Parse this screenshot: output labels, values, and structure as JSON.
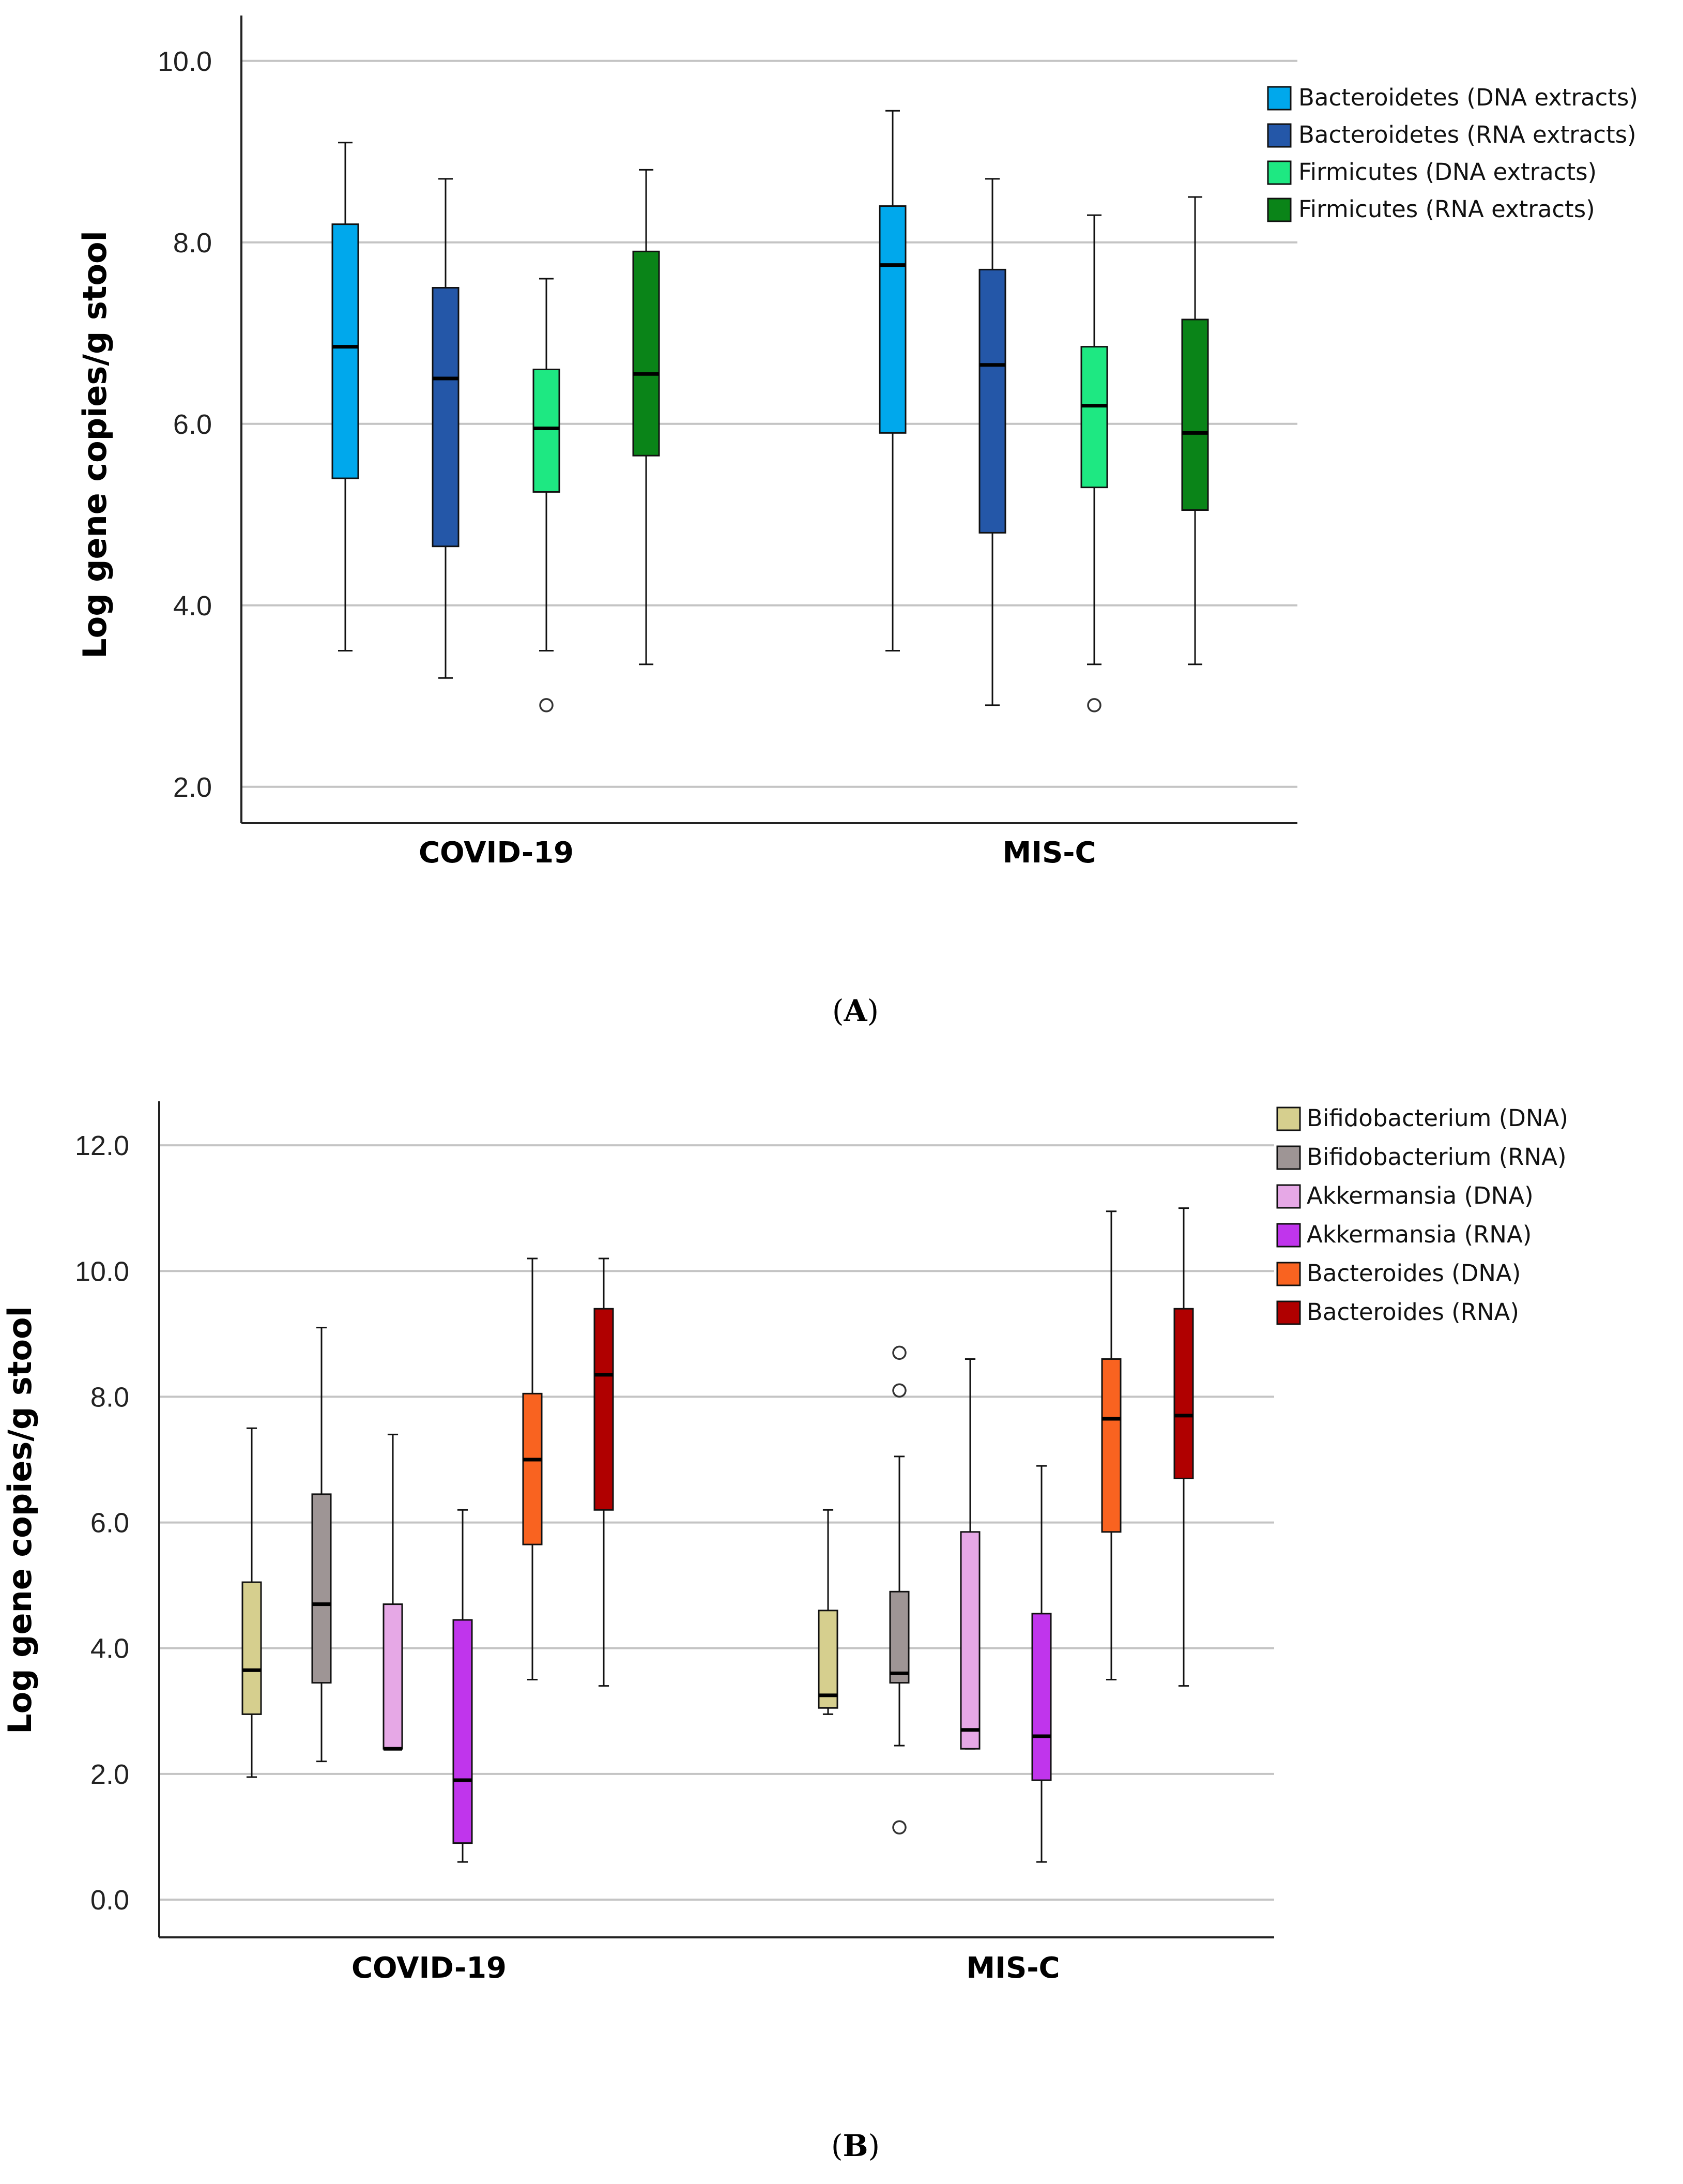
{
  "chart_data": [
    {
      "type": "box",
      "panel_label": "A",
      "title": "",
      "xlabel": "",
      "ylabel": "Log gene copies/g stool",
      "ylim": [
        1.6,
        10.5
      ],
      "yticks": [
        2.0,
        4.0,
        6.0,
        8.0,
        10.0
      ],
      "tick_labels": [
        "2.0",
        "4.0",
        "6.0",
        "8.0",
        "10.0"
      ],
      "grid": true,
      "legend_position": "top-right",
      "categories": [
        "COVID-19",
        "MIS-C"
      ],
      "series": [
        {
          "name": "Bacteroidetes (DNA extracts)",
          "color": "#00a8ec",
          "boxes": [
            {
              "min": 3.5,
              "q1": 5.4,
              "median": 6.85,
              "q3": 8.2,
              "max": 9.1,
              "outliers": []
            },
            {
              "min": 3.5,
              "q1": 5.9,
              "median": 7.75,
              "q3": 8.4,
              "max": 9.45,
              "outliers": []
            }
          ]
        },
        {
          "name": "Bacteroidetes (RNA extracts)",
          "color": "#2457a8",
          "boxes": [
            {
              "min": 3.2,
              "q1": 4.65,
              "median": 6.5,
              "q3": 7.5,
              "max": 8.7,
              "outliers": []
            },
            {
              "min": 2.9,
              "q1": 4.8,
              "median": 6.65,
              "q3": 7.7,
              "max": 8.7,
              "outliers": []
            }
          ]
        },
        {
          "name": "Firmicutes (DNA extracts)",
          "color": "#1ee882",
          "boxes": [
            {
              "min": 3.5,
              "q1": 5.25,
              "median": 5.95,
              "q3": 6.6,
              "max": 7.6,
              "outliers": [
                2.9
              ]
            },
            {
              "min": 3.35,
              "q1": 5.3,
              "median": 6.2,
              "q3": 6.85,
              "max": 8.3,
              "outliers": [
                2.9
              ]
            }
          ]
        },
        {
          "name": "Firmicutes (RNA extracts)",
          "color": "#0a8418",
          "boxes": [
            {
              "min": 3.35,
              "q1": 5.65,
              "median": 6.55,
              "q3": 7.9,
              "max": 8.8,
              "outliers": []
            },
            {
              "min": 3.35,
              "q1": 5.05,
              "median": 5.9,
              "q3": 7.15,
              "max": 8.5,
              "outliers": []
            }
          ]
        }
      ]
    },
    {
      "type": "box",
      "panel_label": "B",
      "title": "",
      "xlabel": "",
      "ylabel": "Log gene copies/g stool",
      "ylim": [
        -0.6,
        12.7
      ],
      "yticks": [
        0.0,
        2.0,
        4.0,
        6.0,
        8.0,
        10.0,
        12.0
      ],
      "tick_labels": [
        "0.0",
        "2.0",
        "4.0",
        "6.0",
        "8.0",
        "10.0",
        "12.0"
      ],
      "grid": true,
      "legend_position": "top-right",
      "categories": [
        "COVID-19",
        "MIS-C"
      ],
      "series": [
        {
          "name": "Bifidobacterium (DNA)",
          "color": "#d6cf8e",
          "boxes": [
            {
              "min": 1.95,
              "q1": 2.95,
              "median": 3.65,
              "q3": 5.05,
              "max": 7.5,
              "outliers": []
            },
            {
              "min": 2.95,
              "q1": 3.05,
              "median": 3.25,
              "q3": 4.6,
              "max": 6.2,
              "outliers": []
            }
          ]
        },
        {
          "name": "Bifidobacterium (RNA)",
          "color": "#9e9595",
          "boxes": [
            {
              "min": 2.2,
              "q1": 3.45,
              "median": 4.7,
              "q3": 6.45,
              "max": 9.1,
              "outliers": []
            },
            {
              "min": 2.45,
              "q1": 3.45,
              "median": 3.6,
              "q3": 4.9,
              "max": 7.05,
              "outliers": [
                8.7,
                8.1,
                1.15
              ]
            }
          ]
        },
        {
          "name": "Akkermansia (DNA)",
          "color": "#e6a8e6",
          "boxes": [
            {
              "min": 2.4,
              "q1": 2.4,
              "median": 2.4,
              "q3": 4.7,
              "max": 7.4,
              "outliers": []
            },
            {
              "min": 2.4,
              "q1": 2.4,
              "median": 2.7,
              "q3": 5.85,
              "max": 8.6,
              "outliers": []
            }
          ]
        },
        {
          "name": "Akkermansia (RNA)",
          "color": "#c035ec",
          "boxes": [
            {
              "min": 0.6,
              "q1": 0.9,
              "median": 1.9,
              "q3": 4.45,
              "max": 6.2,
              "outliers": []
            },
            {
              "min": 0.6,
              "q1": 1.9,
              "median": 2.6,
              "q3": 4.55,
              "max": 6.9,
              "outliers": []
            }
          ]
        },
        {
          "name": "Bacteroides (DNA)",
          "color": "#f96320",
          "boxes": [
            {
              "min": 3.5,
              "q1": 5.65,
              "median": 7.0,
              "q3": 8.05,
              "max": 10.2,
              "outliers": []
            },
            {
              "min": 3.5,
              "q1": 5.85,
              "median": 7.65,
              "q3": 8.6,
              "max": 10.95,
              "outliers": []
            }
          ]
        },
        {
          "name": "Bacteroides (RNA)",
          "color": "#b00000",
          "boxes": [
            {
              "min": 3.4,
              "q1": 6.2,
              "median": 8.35,
              "q3": 9.4,
              "max": 10.2,
              "outliers": []
            },
            {
              "min": 3.4,
              "q1": 6.7,
              "median": 7.7,
              "q3": 9.4,
              "max": 11.0,
              "outliers": []
            }
          ]
        }
      ]
    }
  ]
}
